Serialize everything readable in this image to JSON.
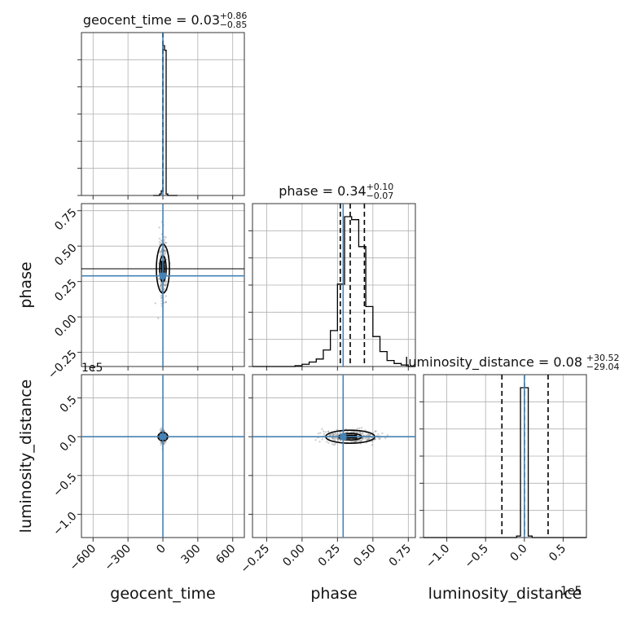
{
  "chart_data": {
    "type": "corner",
    "parameters": [
      "geocent_time",
      "phase",
      "luminosity_distance"
    ],
    "truths": {
      "geocent_time": 0.0,
      "phase": 0.29,
      "luminosity_distance": 0.0
    },
    "summaries": [
      {
        "param": "geocent_time",
        "label": "geocent_time = 0.03",
        "plus": "+0.86",
        "minus": "−0.85"
      },
      {
        "param": "phase",
        "label": "phase = 0.34",
        "plus": "+0.10",
        "minus": "−0.07"
      },
      {
        "param": "luminosity_distance",
        "label": "luminosity_distance = 0.08",
        "plus": "+30.52",
        "minus": "−29.04"
      }
    ],
    "axes": {
      "geocent_time": {
        "range": [
          -700,
          700
        ],
        "ticks": [
          -600,
          -300,
          0,
          300,
          600
        ],
        "tick_labels": [
          "−600",
          "−300",
          "0",
          "300",
          "600"
        ],
        "xlabel": "geocent_time"
      },
      "phase": {
        "range": [
          -0.35,
          0.8
        ],
        "ticks": [
          -0.25,
          0.0,
          0.25,
          0.5,
          0.75
        ],
        "tick_labels": [
          "−0.25",
          "0.00",
          "0.25",
          "0.50",
          "0.75"
        ],
        "xlabel": "phase",
        "ylabel": "phase"
      },
      "luminosity_distance": {
        "range": [
          -130000,
          80000
        ],
        "ticks": [
          -100000,
          -50000,
          0,
          50000
        ],
        "tick_labels": [
          "−1.0",
          "−0.5",
          "0.0",
          "0.5"
        ],
        "xlabel": "luminosity_distance",
        "ylabel": "luminosity_distance",
        "offset_label": "1e5"
      }
    },
    "histograms": {
      "geocent_time": {
        "edges": [
          -84,
          -70,
          -56,
          -42,
          -28,
          -14,
          0,
          14,
          28,
          42,
          56,
          70,
          84,
          98,
          112,
          126
        ],
        "counts": [
          0,
          0,
          0,
          0,
          1,
          3,
          97,
          94,
          1,
          0,
          0,
          0,
          0,
          0,
          0
        ],
        "quantiles": [
          -0.82,
          0.03,
          0.89
        ]
      },
      "phase": {
        "edges": [
          -0.35,
          -0.3,
          -0.25,
          -0.2,
          -0.15,
          -0.1,
          -0.05,
          0.0,
          0.05,
          0.1,
          0.15,
          0.2,
          0.25,
          0.3,
          0.35,
          0.4,
          0.45,
          0.5,
          0.55,
          0.6,
          0.65,
          0.7,
          0.75,
          0.8
        ],
        "counts": [
          0,
          0,
          0,
          0,
          0,
          0,
          0.5,
          1.5,
          3,
          5,
          11,
          24,
          55,
          100,
          98,
          80,
          40,
          20,
          10,
          4,
          2,
          1,
          0
        ],
        "quantiles": [
          0.27,
          0.34,
          0.44
        ]
      },
      "luminosity_distance": {
        "edges": [
          -130000,
          -10000,
          -5000,
          5000,
          10000,
          80000
        ],
        "counts": [
          0,
          1,
          100,
          1,
          0
        ],
        "quantiles": [
          -28960,
          80,
          30600
        ]
      }
    },
    "grid": true
  }
}
